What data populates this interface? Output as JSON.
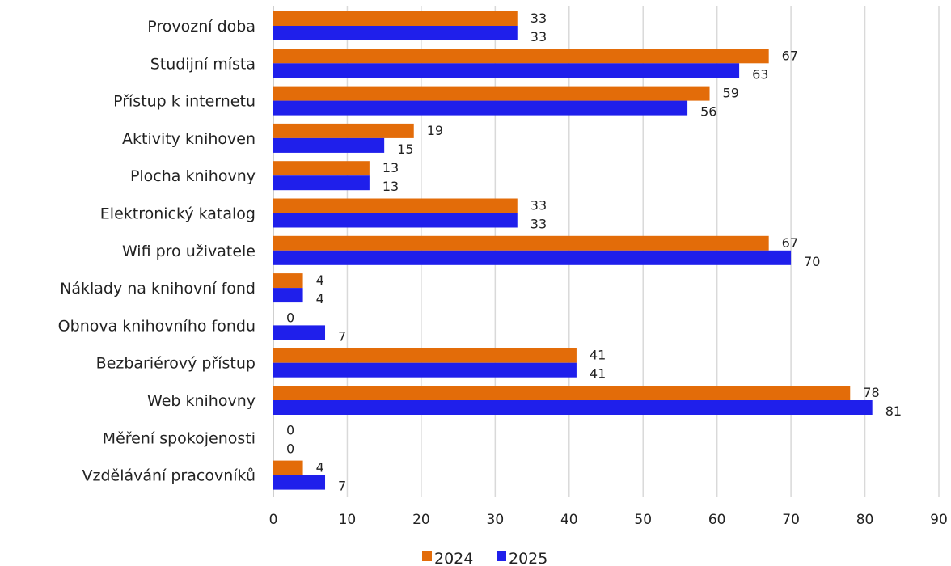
{
  "chart_data": {
    "type": "bar",
    "orientation": "horizontal",
    "title": "",
    "xlabel": "",
    "ylabel": "",
    "categories": [
      "Provozní doba",
      "Studijní místa",
      "Přístup k internetu",
      "Aktivity knihoven",
      "Plocha knihovny",
      "Elektronický katalog",
      "Wifi pro uživatele",
      "Náklady na knihovní fond",
      "Obnova knihovního fondu",
      "Bezbariérový přístup",
      "Web knihovny",
      "Měření spokojenosti",
      "Vzdělávání pracovníků"
    ],
    "series": [
      {
        "name": "2024",
        "color": "#E36C09",
        "values": [
          33,
          67,
          59,
          19,
          13,
          33,
          67,
          4,
          0,
          41,
          78,
          0,
          4
        ]
      },
      {
        "name": "2025",
        "color": "#1F1FEB",
        "values": [
          33,
          63,
          56,
          15,
          13,
          33,
          70,
          4,
          7,
          41,
          81,
          0,
          7
        ]
      }
    ],
    "xlim": [
      0,
      90
    ],
    "xticks": [
      0,
      10,
      20,
      30,
      40,
      50,
      60,
      70,
      80,
      90
    ],
    "grid": "vertical",
    "legend_position": "bottom",
    "data_labels": true
  }
}
